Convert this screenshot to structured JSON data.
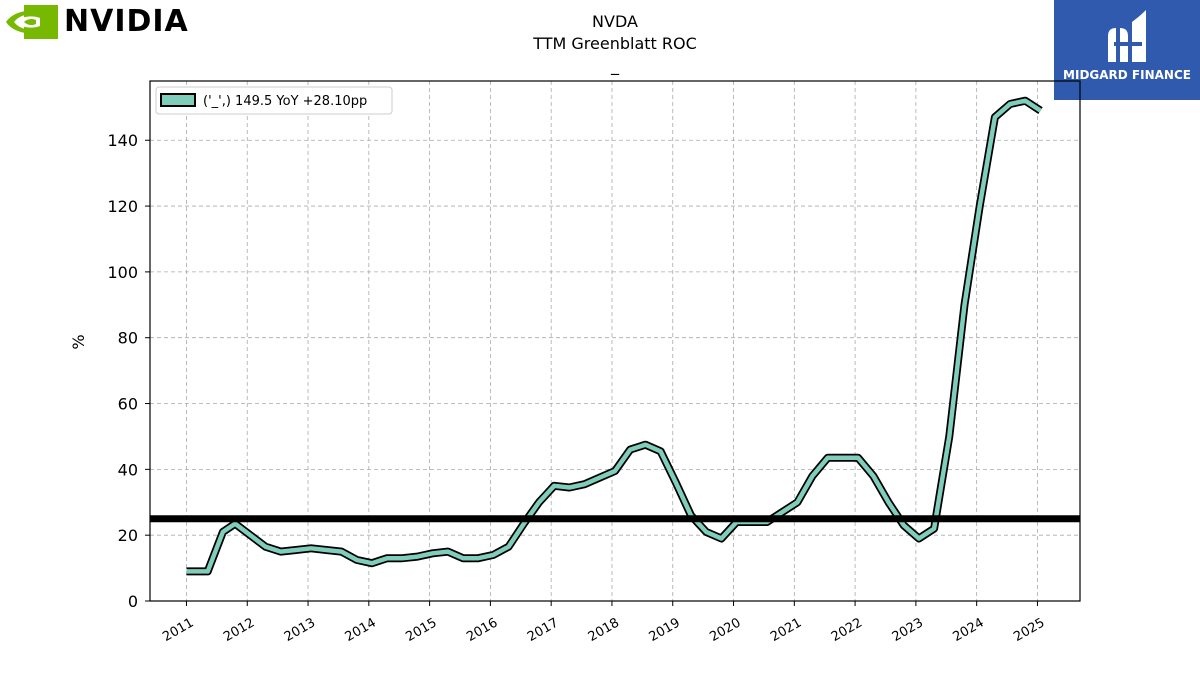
{
  "brand": {
    "name": "NVIDIA",
    "accent": "#76b900"
  },
  "badge": {
    "text": "MIDGARD FINANCE",
    "color": "#2f5aae"
  },
  "chart_data": {
    "type": "line",
    "title": "NVDA",
    "subtitle": "TTM Greenblatt ROC",
    "subtitle2": "_",
    "ylabel": "%",
    "ylim": [
      0,
      158
    ],
    "yticks": [
      0,
      20,
      40,
      60,
      80,
      100,
      120,
      140
    ],
    "xticks": [
      "2011",
      "2012",
      "2013",
      "2014",
      "2015",
      "2016",
      "2017",
      "2018",
      "2019",
      "2020",
      "2021",
      "2022",
      "2023",
      "2024",
      "2025"
    ],
    "xlim": [
      2010.4,
      2025.7
    ],
    "grid": true,
    "legend_position": "top-left",
    "reference_line": 25,
    "series": [
      {
        "name": "('_',) 149.5 YoY +28.10pp",
        "color": "#7fcdbb",
        "x": [
          2011.0,
          2011.35,
          2011.6,
          2011.8,
          2012.05,
          2012.3,
          2012.55,
          2012.8,
          2013.05,
          2013.3,
          2013.55,
          2013.8,
          2014.05,
          2014.3,
          2014.55,
          2014.8,
          2015.05,
          2015.3,
          2015.55,
          2015.8,
          2016.05,
          2016.3,
          2016.55,
          2016.8,
          2017.05,
          2017.3,
          2017.55,
          2017.8,
          2018.05,
          2018.3,
          2018.55,
          2018.8,
          2019.05,
          2019.3,
          2019.55,
          2019.8,
          2020.05,
          2020.3,
          2020.55,
          2020.8,
          2021.05,
          2021.3,
          2021.55,
          2021.8,
          2022.05,
          2022.3,
          2022.55,
          2022.8,
          2023.05,
          2023.3,
          2023.55,
          2023.8,
          2024.05,
          2024.3,
          2024.55,
          2024.8,
          2025.05
        ],
        "values": [
          9,
          9,
          21,
          23.5,
          20,
          16.5,
          15,
          15.5,
          16,
          15.5,
          15,
          12.5,
          11.5,
          13,
          13,
          13.5,
          14.5,
          15,
          13,
          13,
          14,
          16.5,
          23.5,
          30,
          35,
          34.5,
          35.5,
          37.5,
          39.5,
          46,
          47.5,
          45.5,
          36,
          26,
          21,
          19,
          24,
          24,
          24,
          27,
          30,
          38,
          43.5,
          43.5,
          43.5,
          38,
          30,
          23,
          19,
          22,
          50,
          90,
          120,
          147,
          151,
          152,
          149
        ]
      }
    ]
  }
}
